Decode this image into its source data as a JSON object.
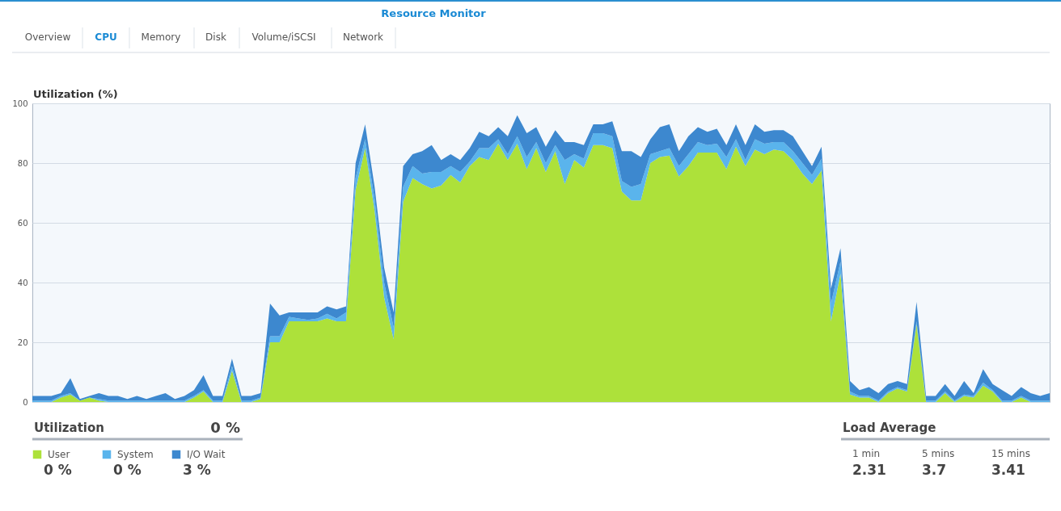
{
  "chart_data": {
    "type": "area",
    "title": "Resource Monitor",
    "ylabel": "Utilization (%)",
    "categories": [
      null,
      null,
      null,
      null,
      null,
      null,
      null,
      null,
      null,
      null,
      null,
      null,
      null,
      null,
      null,
      null,
      null,
      null,
      null,
      null,
      null,
      null,
      null,
      null,
      null,
      null,
      null,
      null,
      null,
      null,
      null,
      null,
      null,
      null,
      null,
      null,
      null,
      null,
      null,
      null,
      null,
      null,
      null,
      null,
      null,
      null,
      null,
      null,
      null,
      null,
      null,
      null,
      null,
      null,
      null,
      null,
      null,
      null,
      null,
      null,
      null,
      null,
      null,
      null,
      null,
      null,
      null,
      null,
      null,
      null,
      null,
      null,
      null,
      null,
      null,
      null,
      null,
      null,
      null,
      null,
      null,
      null,
      null,
      null,
      null,
      null,
      null,
      null,
      null,
      null,
      null,
      null,
      null,
      null,
      null,
      null,
      null,
      null,
      null,
      null,
      null,
      null,
      null,
      null,
      null,
      null,
      null,
      null
    ],
    "stacked": true,
    "series": [
      {
        "name": "User",
        "color": "#ade13a",
        "values": [
          0,
          0,
          0,
          1.5,
          2.5,
          0.5,
          1.5,
          0.5,
          0,
          0,
          0,
          0,
          0,
          0,
          0,
          0,
          0,
          1.5,
          3.5,
          0,
          0,
          10.5,
          0,
          0,
          1,
          20,
          20,
          27,
          27,
          27,
          27,
          28,
          27,
          27,
          71,
          85,
          64,
          35,
          21,
          67,
          75,
          73,
          71.5,
          72.5,
          76,
          73.5,
          79,
          82,
          81,
          86.5,
          81,
          86.5,
          78,
          85,
          77,
          84,
          73,
          81,
          78.5,
          86,
          86,
          85,
          70.5,
          67.5,
          67.5,
          80,
          82,
          82.5,
          75.5,
          79,
          83.5,
          83.5,
          83.5,
          78,
          85.5,
          79,
          84.5,
          83,
          84.5,
          84,
          81,
          76.5,
          73,
          77.5,
          27,
          43,
          2.5,
          1.5,
          1.5,
          0,
          3,
          4.5,
          3.5,
          26,
          0,
          0,
          3,
          0,
          2,
          1.5,
          5.5,
          3.5,
          0,
          0,
          1.5,
          0,
          0,
          0
        ]
      },
      {
        "name": "System",
        "color": "#5ab4ec",
        "values": [
          0.5,
          0.5,
          0.5,
          0.5,
          0.5,
          0,
          0,
          0.5,
          0.5,
          0.5,
          0.5,
          0.5,
          0.5,
          0.5,
          0.5,
          0.5,
          0.5,
          0.5,
          0.5,
          0.5,
          0.5,
          1.5,
          0.5,
          0.5,
          0.5,
          2,
          2,
          1.5,
          1,
          0.5,
          1,
          1.5,
          1,
          3,
          4,
          3,
          4,
          5,
          4,
          5,
          4,
          3.5,
          5.5,
          4.5,
          3,
          3.5,
          1.5,
          3,
          4,
          1.5,
          2,
          2.5,
          4,
          2,
          3,
          2,
          8,
          2,
          3,
          4,
          4,
          4,
          3.5,
          4.5,
          5.5,
          3,
          2,
          2.5,
          3.5,
          4,
          3.5,
          2.5,
          3,
          4,
          2.5,
          2,
          3.5,
          3.5,
          2.5,
          3,
          3,
          3.5,
          3,
          4,
          6,
          4,
          1,
          0.5,
          0.5,
          0.5,
          0.5,
          0.5,
          0.5,
          1,
          0.5,
          0.5,
          0.5,
          0.5,
          0.5,
          0.5,
          1,
          0.5,
          0.5,
          0.5,
          0.5,
          0.5,
          0.5,
          0.5
        ]
      },
      {
        "name": "I/O Wait",
        "color": "#3d88cf",
        "values": [
          1.5,
          1.5,
          1.5,
          1,
          5,
          0.5,
          0.5,
          2,
          1.5,
          1.5,
          0.5,
          1.5,
          0.5,
          1.5,
          2.5,
          0.5,
          1.5,
          2,
          5,
          1.5,
          1.5,
          2.5,
          1.5,
          1.5,
          1.5,
          11,
          7,
          1.5,
          2,
          2.5,
          2,
          2.5,
          3,
          2,
          5,
          5,
          4,
          5,
          5,
          7,
          4,
          7.5,
          9,
          4,
          4,
          4,
          4.5,
          5.5,
          4,
          4,
          6,
          7,
          8,
          5,
          5.5,
          5,
          6,
          4,
          4.5,
          3,
          3,
          5,
          10,
          12,
          9,
          5,
          8,
          8,
          5,
          6,
          5,
          4.5,
          5,
          4,
          5,
          5,
          5,
          4,
          4,
          4,
          5,
          4,
          3,
          4,
          5,
          4.5,
          3.5,
          2,
          3,
          2.5,
          2.5,
          2,
          2,
          6.5,
          1.5,
          1.5,
          2.5,
          1.5,
          4.5,
          1,
          4.5,
          2,
          3.5,
          1.5,
          3,
          2.5,
          1.5,
          2.5
        ]
      }
    ],
    "ylim": [
      0,
      100
    ],
    "yticks": [
      0,
      20,
      40,
      60,
      80,
      100
    ],
    "grid": "y",
    "legend": "bottom left",
    "annotations": [
      "Overview",
      "CPU",
      "Memory",
      "Disk",
      "Volume/iSCSI",
      "Network",
      "Utilization",
      "0 %",
      "0 %",
      "0 %",
      "3 %",
      "Load Average",
      "1 min",
      "2.31",
      "5 mins",
      "3.7",
      "15 mins",
      "3.41"
    ]
  }
}
